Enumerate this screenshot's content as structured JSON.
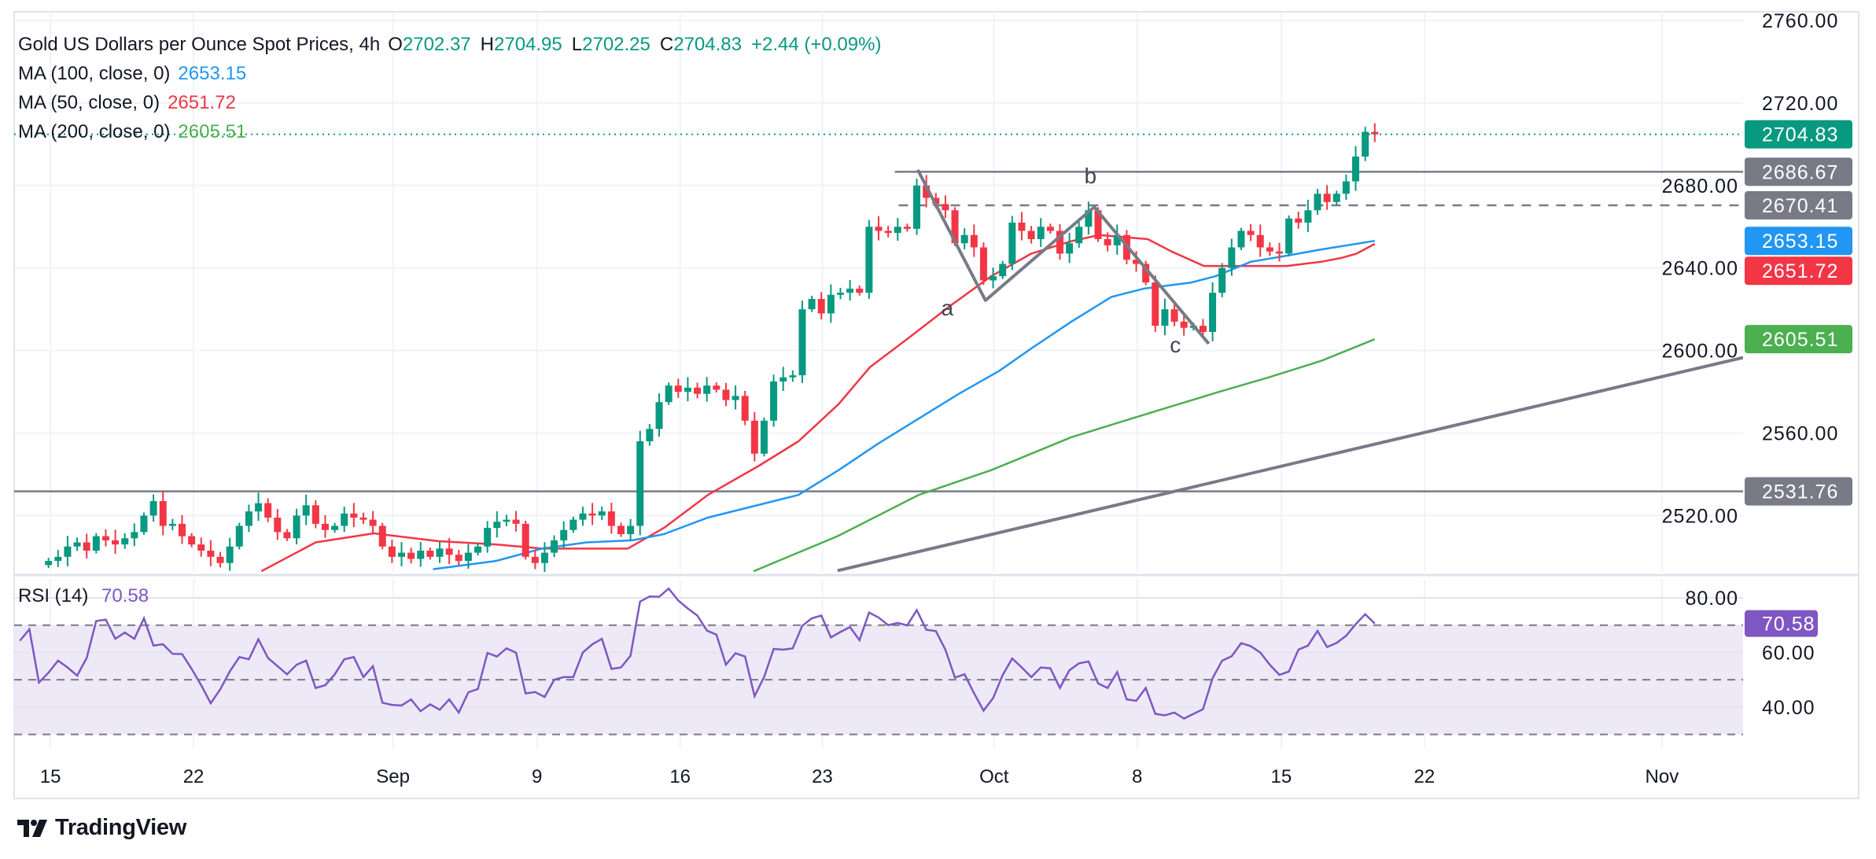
{
  "header": {
    "symbol_title": "Gold US Dollars per Ounce Spot Prices, 4h",
    "o_label": "O",
    "o": "2702.37",
    "h_label": "H",
    "h": "2704.95",
    "l_label": "L",
    "l": "2702.25",
    "c_label": "C",
    "c": "2704.83",
    "change": "+2.44 (+0.09%)"
  },
  "indicators": [
    {
      "label": "MA (100, close, 0)",
      "value": "2653.15",
      "color": "#2196f3"
    },
    {
      "label": "MA (50, close, 0)",
      "value": "2651.72",
      "color": "#f23645"
    },
    {
      "label": "MA (200, close, 0)",
      "value": "2605.51",
      "color": "#4caf50"
    }
  ],
  "rsi_legend": {
    "label": "RSI (14)",
    "value": "70.58",
    "color": "#7e57c2"
  },
  "brand": "TradingView",
  "chart_data": {
    "type": "candlestick",
    "interval": "4h",
    "colors": {
      "up": "#089981",
      "down": "#f23645",
      "grid": "#f0f3fa",
      "drawing": "#787b86",
      "rsi": "#7e57c2",
      "rsi_band": "#ede9f7"
    },
    "x_axis": {
      "unit": "bar",
      "xlim": [
        -3.6,
        177.6
      ],
      "ticks": [
        {
          "label": "15",
          "bar": 0.2
        },
        {
          "label": "22",
          "bar": 15.2
        },
        {
          "label": "Sep",
          "bar": 36.1
        },
        {
          "label": "9",
          "bar": 51.2
        },
        {
          "label": "16",
          "bar": 66.2
        },
        {
          "label": "23",
          "bar": 81.1
        },
        {
          "label": "Oct",
          "bar": 99.1
        },
        {
          "label": "8",
          "bar": 114.1
        },
        {
          "label": "15",
          "bar": 129.2
        },
        {
          "label": "22",
          "bar": 144.2
        },
        {
          "label": "Nov",
          "bar": 169.1
        }
      ]
    },
    "price_axis": {
      "ylim": [
        2492.7,
        2764.2
      ],
      "ticks": [
        {
          "value": 2760,
          "label": "2760.00"
        },
        {
          "value": 2720,
          "label": "2720.00"
        },
        {
          "value": 2680,
          "label": "2680.00"
        },
        {
          "value": 2640,
          "label": "2640.00"
        },
        {
          "value": 2600,
          "label": "2600.00"
        },
        {
          "value": 2560,
          "label": "2560.00"
        },
        {
          "value": 2520,
          "label": "2520.00"
        }
      ],
      "grid": true
    },
    "closes": [
      2498,
      2500,
      2505,
      2507,
      2503,
      2510,
      2508,
      2506,
      2509,
      2512,
      2520,
      2527,
      2515,
      2516,
      2510,
      2506,
      2503,
      2500,
      2497,
      2505,
      2515,
      2522,
      2526,
      2519,
      2512,
      2509,
      2520,
      2525,
      2516,
      2513,
      2515,
      2521,
      2519,
      2518,
      2515,
      2505,
      2500,
      2502,
      2499,
      2503,
      2500,
      2504,
      2501,
      2498,
      2502,
      2505,
      2514,
      2517,
      2518,
      2516,
      2500,
      2497,
      2502,
      2508,
      2513,
      2518,
      2521,
      2520,
      2522,
      2515,
      2511,
      2515,
      2556,
      2562,
      2575,
      2583,
      2580,
      2582,
      2579,
      2583,
      2581,
      2576,
      2578,
      2566,
      2550,
      2566,
      2585,
      2587,
      2588,
      2620,
      2625,
      2618,
      2627,
      2628,
      2630,
      2628,
      2660,
      2658,
      2657,
      2660,
      2659,
      2680,
      2674,
      2671,
      2668,
      2652,
      2656,
      2650,
      2634,
      2636,
      2642,
      2662,
      2658,
      2654,
      2660,
      2658,
      2647,
      2652,
      2660,
      2668,
      2654,
      2651,
      2656,
      2644,
      2642,
      2633,
      2612,
      2620,
      2614,
      2611,
      2612,
      2609,
      2628,
      2640,
      2650,
      2658,
      2656,
      2650,
      2648,
      2647,
      2664,
      2662,
      2668,
      2676,
      2672,
      2676,
      2682,
      2694,
      2706,
      2704.83
    ],
    "moving_averages": [
      {
        "name": "MA (50, close, 0)",
        "color": "#f23645",
        "points": [
          [
            22.3,
            2493
          ],
          [
            28,
            2507
          ],
          [
            34.1,
            2511.4
          ],
          [
            40.8,
            2507.6
          ],
          [
            46.9,
            2506
          ],
          [
            51.7,
            2504
          ],
          [
            60.7,
            2504
          ],
          [
            64.5,
            2514
          ],
          [
            69.1,
            2530
          ],
          [
            74.4,
            2544
          ],
          [
            78.6,
            2556
          ],
          [
            82.8,
            2574
          ],
          [
            86.1,
            2592
          ],
          [
            90.4,
            2607
          ],
          [
            94.6,
            2622
          ],
          [
            98.8,
            2636
          ],
          [
            103,
            2647
          ],
          [
            107.2,
            2653
          ],
          [
            110.1,
            2656
          ],
          [
            115.2,
            2654
          ],
          [
            117.7,
            2648
          ],
          [
            121.1,
            2641
          ],
          [
            126,
            2641
          ],
          [
            129.8,
            2641
          ],
          [
            133.4,
            2643
          ],
          [
            135.6,
            2645
          ],
          [
            137.1,
            2647
          ],
          [
            139,
            2651.72
          ]
        ]
      },
      {
        "name": "MA (100, close, 0)",
        "color": "#2196f3",
        "points": [
          [
            40.3,
            2494
          ],
          [
            46.9,
            2498
          ],
          [
            51.7,
            2504
          ],
          [
            56.4,
            2507
          ],
          [
            61.2,
            2508
          ],
          [
            64.5,
            2511
          ],
          [
            69.1,
            2519
          ],
          [
            78.6,
            2530
          ],
          [
            82.8,
            2542
          ],
          [
            87,
            2555
          ],
          [
            91.2,
            2567
          ],
          [
            95.4,
            2579
          ],
          [
            99.6,
            2590
          ],
          [
            103,
            2601
          ],
          [
            107.2,
            2614
          ],
          [
            111.4,
            2626
          ],
          [
            114.8,
            2630
          ],
          [
            119.8,
            2633
          ],
          [
            122.3,
            2636
          ],
          [
            126,
            2643
          ],
          [
            129.8,
            2646
          ],
          [
            133.4,
            2649
          ],
          [
            139,
            2653.15
          ]
        ]
      },
      {
        "name": "MA (200, close, 0)",
        "color": "#4caf50",
        "points": [
          [
            73.9,
            2493
          ],
          [
            82.7,
            2510
          ],
          [
            91.2,
            2530
          ],
          [
            98.8,
            2542
          ],
          [
            107.2,
            2558
          ],
          [
            115.6,
            2570
          ],
          [
            122.7,
            2580
          ],
          [
            127.9,
            2587
          ],
          [
            133.4,
            2595
          ],
          [
            139,
            2605.51
          ]
        ]
      }
    ],
    "drawings": {
      "horizontal_lines": [
        {
          "price": 2531.76,
          "from_bar": -3.6,
          "style": "solid"
        },
        {
          "price": 2686.67,
          "from_bar": 88.7,
          "style": "solid"
        },
        {
          "price": 2670.41,
          "from_bar": 89.1,
          "style": "dashed"
        }
      ],
      "abc_pattern": {
        "points": [
          [
            91.1,
            2687.6
          ],
          [
            98.2,
            2624.3
          ],
          [
            109.6,
            2669.6
          ],
          [
            121.6,
            2603.3
          ]
        ],
        "labels": [
          {
            "text": "a",
            "bar": 94.2,
            "price": 2617
          },
          {
            "text": "b",
            "bar": 109.2,
            "price": 2681
          },
          {
            "text": "c",
            "bar": 118.1,
            "price": 2599
          }
        ]
      },
      "trendline": {
        "from": [
          82.7,
          2493.3
        ],
        "to": [
          177.6,
          2596.6
        ]
      }
    },
    "last_price": {
      "value": 2704.83,
      "color": "#089981"
    },
    "price_tags": [
      {
        "label": "2704.83",
        "value": 2704.83,
        "color": "#089981"
      },
      {
        "label": "2686.67",
        "value": 2686.67,
        "color": "#787b86"
      },
      {
        "label": "2670.41",
        "value": 2670.41,
        "color": "#787b86"
      },
      {
        "label": "2653.15",
        "value": 2653.15,
        "color": "#2196f3"
      },
      {
        "label": "2651.72",
        "value": 2651.72,
        "color": "#f23645"
      },
      {
        "label": "2605.51",
        "value": 2605.51,
        "color": "#4caf50"
      },
      {
        "label": "2531.76",
        "value": 2531.76,
        "color": "#787b86"
      }
    ],
    "rsi": {
      "period": 14,
      "ylim": [
        24.7,
        86.9
      ],
      "levels": [
        70,
        50,
        30
      ],
      "ticks": [
        {
          "value": 80,
          "label": "80.00"
        },
        {
          "value": 60,
          "label": "60.00"
        },
        {
          "value": 40,
          "label": "40.00"
        }
      ],
      "start_bar": -3,
      "values": [
        64.3,
        68.5,
        49,
        52.6,
        57,
        54.5,
        51.5,
        58,
        71.5,
        72,
        65,
        67.3,
        65,
        72.5,
        62.5,
        63,
        59.5,
        59.4,
        54,
        48,
        41.4,
        46.5,
        53,
        58.3,
        57.5,
        64.8,
        58,
        55,
        52,
        55.5,
        57,
        47,
        48,
        52,
        57.5,
        58.3,
        51,
        55,
        41.6,
        40.8,
        40.6,
        42.8,
        38.5,
        41,
        39,
        42.8,
        38,
        45.4,
        46.6,
        59.8,
        58.5,
        61.5,
        59.9,
        45,
        45.5,
        43.7,
        50,
        51,
        51,
        60,
        63,
        65,
        54,
        54.5,
        58.8,
        78.6,
        80.5,
        80.4,
        83.4,
        79,
        76.1,
        73.5,
        68,
        66.5,
        55.5,
        59.7,
        58.5,
        44,
        51,
        61.3,
        61,
        61.5,
        69.8,
        72.5,
        73.5,
        65.5,
        67.5,
        69.3,
        64.5,
        74.6,
        72.8,
        70,
        70.8,
        69.9,
        75.5,
        68.3,
        67.8,
        61,
        50.8,
        52,
        45.1,
        38.7,
        43.3,
        51.7,
        57.8,
        54.5,
        51,
        54.5,
        54.2,
        47,
        53.5,
        56,
        56.7,
        48.7,
        47,
        52.8,
        42.8,
        42.3,
        47,
        37.5,
        37,
        38,
        35.8,
        37.5,
        39.2,
        50.6,
        57,
        58.6,
        63.4,
        62.3,
        60,
        55.5,
        51.8,
        53,
        61,
        62.5,
        67.9,
        62,
        63.5,
        66.1,
        70.3,
        74,
        70.58
      ],
      "tag": {
        "label": "70.58",
        "value": 70.58,
        "color": "#7e57c2"
      }
    }
  }
}
